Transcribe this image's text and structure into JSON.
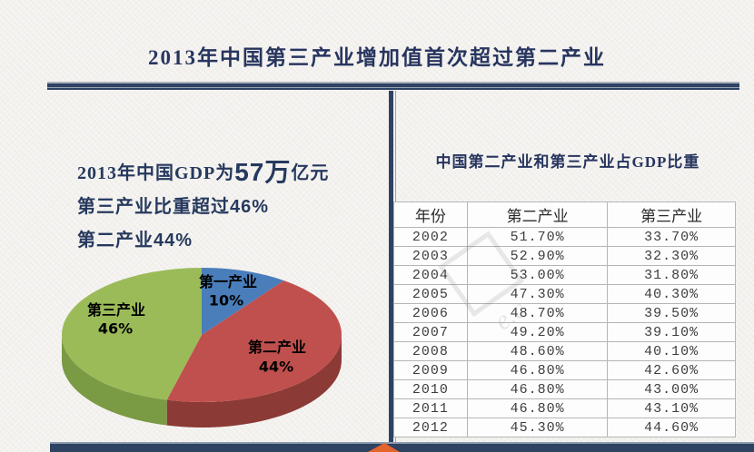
{
  "title": "2013年中国第三产业增加值首次超过第二产业",
  "left_panel": {
    "line1": {
      "prefix": "2013年中国GDP为",
      "highlight": "57万",
      "suffix": "亿元"
    },
    "line2": {
      "prefix": "第三产业比重超过",
      "value": "46%"
    },
    "line3": {
      "prefix": "第二产业",
      "value": "44%"
    }
  },
  "right_panel": {
    "title": "中国第二产业和第三产业占GDP比重",
    "table": {
      "columns": [
        "年份",
        "第二产业",
        "第三产业"
      ],
      "rows": [
        [
          "2002",
          "51.70%",
          "33.70%"
        ],
        [
          "2003",
          "52.90%",
          "32.30%"
        ],
        [
          "2004",
          "53.00%",
          "31.80%"
        ],
        [
          "2005",
          "47.30%",
          "40.30%"
        ],
        [
          "2006",
          "48.70%",
          "39.50%"
        ],
        [
          "2007",
          "49.20%",
          "39.10%"
        ],
        [
          "2008",
          "48.60%",
          "40.10%"
        ],
        [
          "2009",
          "46.80%",
          "42.60%"
        ],
        [
          "2010",
          "46.80%",
          "43.00%"
        ],
        [
          "2011",
          "46.80%",
          "43.10%"
        ],
        [
          "2012",
          "45.30%",
          "44.60%"
        ]
      ]
    }
  },
  "watermark_text": "e.c",
  "chart_data": [
    {
      "type": "pie",
      "style": "3d",
      "title": "",
      "start_angle_deg": 0,
      "direction": "clockwise",
      "slices": [
        {
          "label": "第一产业",
          "value": 10,
          "pct": "10%",
          "color": "#4a7ebb",
          "side_color": "#31568a"
        },
        {
          "label": "第二产业",
          "value": 44,
          "pct": "44%",
          "color": "#c0504d",
          "side_color": "#8c3a36"
        },
        {
          "label": "第三产业",
          "value": 46,
          "pct": "46%",
          "color": "#9bbb59",
          "side_color": "#7a9a44"
        }
      ]
    },
    {
      "type": "table",
      "title": "中国第二产业和第三产业占GDP比重",
      "columns": [
        "年份",
        "第二产业",
        "第三产业"
      ],
      "rows": [
        [
          "2002",
          "51.70%",
          "33.70%"
        ],
        [
          "2003",
          "52.90%",
          "32.30%"
        ],
        [
          "2004",
          "53.00%",
          "31.80%"
        ],
        [
          "2005",
          "47.30%",
          "40.30%"
        ],
        [
          "2006",
          "48.70%",
          "39.50%"
        ],
        [
          "2007",
          "49.20%",
          "39.10%"
        ],
        [
          "2008",
          "48.60%",
          "40.10%"
        ],
        [
          "2009",
          "46.80%",
          "42.60%"
        ],
        [
          "2010",
          "46.80%",
          "43.00%"
        ],
        [
          "2011",
          "46.80%",
          "43.10%"
        ],
        [
          "2012",
          "45.30%",
          "44.60%"
        ]
      ]
    }
  ],
  "colors": {
    "accent_navy": "#2e4265",
    "accent_orange": "#e4642e",
    "title_text": "#27355f",
    "table_text": "#3d3d3d",
    "paper": "#f4f2ef"
  }
}
